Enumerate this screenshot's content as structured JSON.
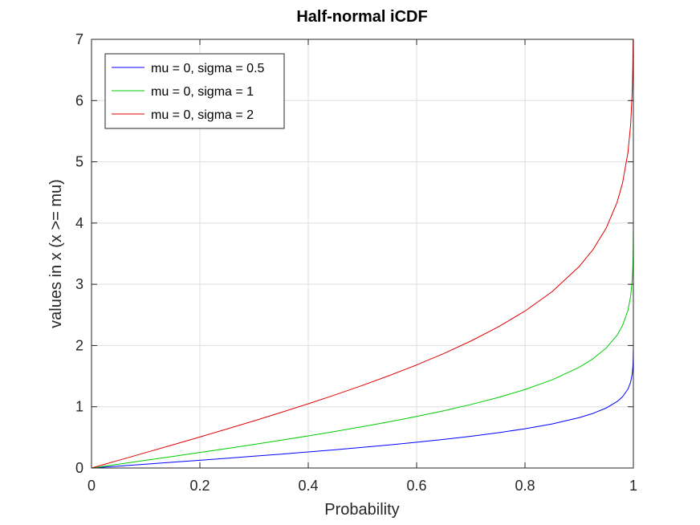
{
  "chart_data": {
    "type": "line",
    "title": "Half-normal iCDF",
    "xlabel": "Probability",
    "ylabel": "values in x (x >= mu)",
    "xlim": [
      0,
      1
    ],
    "ylim": [
      0,
      7
    ],
    "xticks": [
      0,
      0.2,
      0.4,
      0.6,
      0.8,
      1
    ],
    "xtick_labels": [
      "0",
      "0.2",
      "0.4",
      "0.6",
      "0.8",
      "1"
    ],
    "yticks": [
      0,
      1,
      2,
      3,
      4,
      5,
      6,
      7
    ],
    "ytick_labels": [
      "0",
      "1",
      "2",
      "3",
      "4",
      "5",
      "6",
      "7"
    ],
    "grid": true,
    "legend_position": "top-left",
    "x": [
      0,
      0.05,
      0.1,
      0.15,
      0.2,
      0.25,
      0.3,
      0.35,
      0.4,
      0.45,
      0.5,
      0.55,
      0.6,
      0.65,
      0.7,
      0.75,
      0.8,
      0.85,
      0.9,
      0.925,
      0.95,
      0.97,
      0.98,
      0.99,
      0.995,
      0.998,
      0.999,
      0.9995,
      0.9999
    ],
    "series": [
      {
        "name": "mu = 0, sigma = 0.5",
        "color": "#0000ff",
        "values": [
          0,
          0.0313,
          0.0628,
          0.0946,
          0.1267,
          0.1593,
          0.1927,
          0.2268,
          0.2621,
          0.2986,
          0.3372,
          0.3777,
          0.4208,
          0.4677,
          0.5183,
          0.5752,
          0.6408,
          0.7198,
          0.8224,
          0.8902,
          0.98,
          1.0851,
          1.1632,
          1.2879,
          1.4035,
          1.5451,
          1.6452,
          1.7404,
          1.9452
        ]
      },
      {
        "name": "mu = 0, sigma = 1",
        "color": "#00cc00",
        "values": [
          0,
          0.0627,
          0.1257,
          0.1891,
          0.2533,
          0.3186,
          0.3853,
          0.4538,
          0.5244,
          0.5978,
          0.6745,
          0.7554,
          0.8416,
          0.9346,
          1.0364,
          1.1503,
          1.2816,
          1.4395,
          1.6449,
          1.7805,
          1.96,
          2.1701,
          2.3263,
          2.5758,
          2.807,
          3.0902,
          3.2905,
          3.4808,
          3.8906
        ]
      },
      {
        "name": "mu = 0, sigma = 2",
        "color": "#e00000",
        "values": [
          0,
          0.1254,
          0.2513,
          0.3782,
          0.5067,
          0.6372,
          0.7706,
          0.9075,
          1.0488,
          1.1955,
          1.349,
          1.5108,
          1.6832,
          1.8692,
          2.0729,
          2.3007,
          2.5631,
          2.8791,
          3.2897,
          3.5609,
          3.9199,
          4.3402,
          4.6527,
          5.1517,
          5.6141,
          6.1803,
          6.581,
          6.9616,
          7.7812
        ]
      }
    ]
  }
}
